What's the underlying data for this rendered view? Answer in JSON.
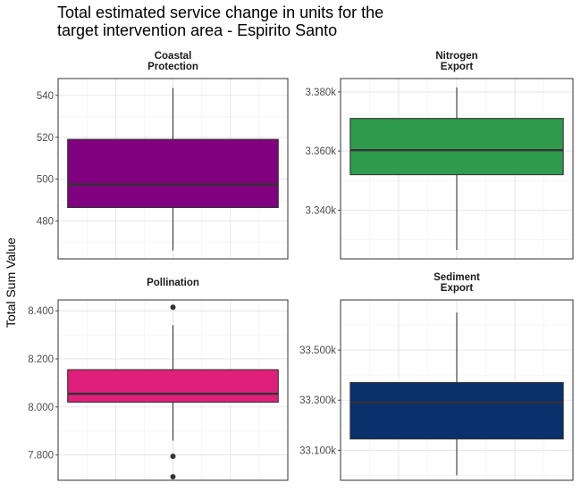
{
  "title_lines": [
    "Total estimated service change in units for the",
    "target intervention area - Espirito Santo"
  ],
  "ylabel": "Total Sum Value",
  "chart_data": [
    {
      "type": "box",
      "panel": "Coastal Protection",
      "strip_lines": [
        "Coastal",
        "Protection"
      ],
      "color": "#800080",
      "ylim": [
        462,
        548
      ],
      "ticks": [
        480,
        500,
        520,
        540
      ],
      "tick_labels": [
        "480",
        "500",
        "520",
        "540"
      ],
      "box": {
        "whisker_low": 466,
        "q1": 486.5,
        "median": 497.5,
        "q3": 519,
        "whisker_high": 543.5
      },
      "outliers": []
    },
    {
      "type": "box",
      "panel": "Nitrogen Export",
      "strip_lines": [
        "Nitrogen",
        "Export"
      ],
      "color": "#2E9B4D",
      "ylim": [
        3323.5,
        3384.5
      ],
      "ticks": [
        3340,
        3360,
        3380
      ],
      "tick_labels": [
        "3.340k",
        "3.360k",
        "3.380k"
      ],
      "box": {
        "whisker_low": 3326.5,
        "q1": 3352,
        "median": 3360.3,
        "q3": 3371,
        "whisker_high": 3381.5
      },
      "outliers": []
    },
    {
      "type": "box",
      "panel": "Pollination",
      "strip_lines": [
        "Pollination"
      ],
      "color": "#E01F7B",
      "ylim": [
        7.695,
        8.445
      ],
      "ticks": [
        7.8,
        8.0,
        8.2,
        8.4
      ],
      "tick_labels": [
        "7.800",
        "8.000",
        "8.200",
        "8.400"
      ],
      "box": {
        "whisker_low": 7.86,
        "q1": 8.02,
        "median": 8.055,
        "q3": 8.155,
        "whisker_high": 8.34
      },
      "outliers": [
        8.415,
        7.795,
        7.71
      ]
    },
    {
      "type": "box",
      "panel": "Sediment Export",
      "strip_lines": [
        "Sediment",
        "Export"
      ],
      "color": "#08306B",
      "ylim": [
        32980,
        33700
      ],
      "ticks": [
        33100,
        33300,
        33500
      ],
      "tick_labels": [
        "33.100k",
        "33.300k",
        "33.500k"
      ],
      "box": {
        "whisker_low": 33000,
        "q1": 33145,
        "median": 33290,
        "q3": 33370,
        "whisker_high": 33650
      },
      "outliers": []
    }
  ]
}
